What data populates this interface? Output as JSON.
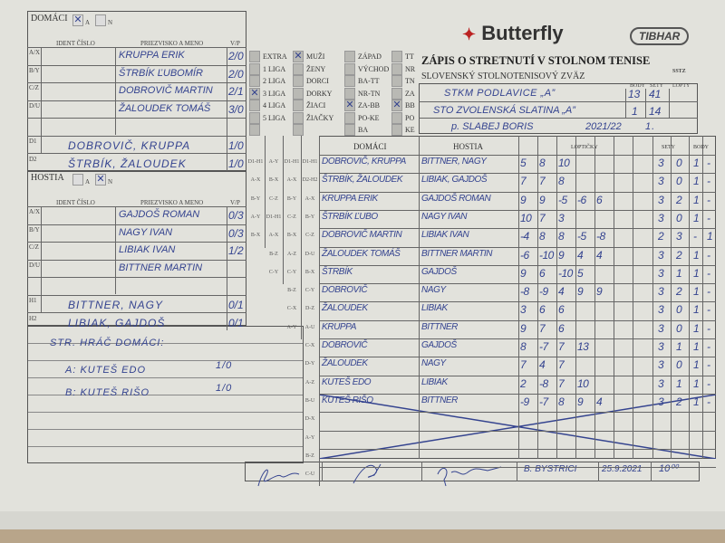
{
  "form": {
    "brand": "Butterfly",
    "brand2": "TIBHAR",
    "badge": "SSTZ",
    "title": "ZÁPIS O STRETNUTÍ V STOLNOM TENISE",
    "subtitle": "SLOVENSKÝ STOLNOTENISOVÝ ZVÄZ",
    "col_body": "BODY",
    "col_sety": "SETY",
    "col_lopty": "LOPTY"
  },
  "home_panel": {
    "label": "DOMÁCI",
    "opt_a": "A",
    "opt_n": "N",
    "selected": "A",
    "h_ident": "IDENT ČÍSLO",
    "h_name": "PRIEZVISKO A MENO",
    "h_vp": "V/P",
    "players": [
      {
        "slot": "A/X",
        "name": "KRUPPA ERIK",
        "vp": "2/0"
      },
      {
        "slot": "B/Y",
        "name": "ŠTRBÍK ĽUBOMÍR",
        "vp": "2/0"
      },
      {
        "slot": "C/Z",
        "name": "DOBROVIČ MARTIN",
        "vp": "2/1"
      },
      {
        "slot": "D/U",
        "name": "ŽALOUDEK TOMÁŠ",
        "vp": "3/0"
      }
    ],
    "doubles": [
      {
        "slot": "D1",
        "names": "DOBROVIČ, KRUPPA",
        "vp": "1/0"
      },
      {
        "slot": "D2",
        "names": "ŠTRBÍK, ŽALOUDEK",
        "vp": "1/0"
      }
    ]
  },
  "away_panel": {
    "label": "HOSTIA",
    "opt_a": "A",
    "opt_n": "N",
    "selected": "N",
    "h_ident": "IDENT ČÍSLO",
    "h_name": "PRIEZVISKO A MENO",
    "h_vp": "V/P",
    "players": [
      {
        "slot": "A/X",
        "name": "GAJDOŠ ROMAN",
        "vp": "0/3"
      },
      {
        "slot": "B/Y",
        "name": "NAGY IVAN",
        "vp": "0/3"
      },
      {
        "slot": "C/Z",
        "name": "LIBIAK IVAN",
        "vp": "1/2"
      },
      {
        "slot": "D/U",
        "name": "BITTNER MARTIN",
        "vp": ""
      }
    ],
    "doubles": [
      {
        "slot": "H1",
        "names": "BITTNER, NAGY",
        "vp": "0/1"
      },
      {
        "slot": "H2",
        "names": "LIBIAK, GAJDOŠ",
        "vp": "0/1"
      }
    ]
  },
  "notes": [
    "STR. HRÁČ DOMÁCI:",
    "A: KUTEŠ EDO",
    "B: KUTEŠ RIŠO"
  ],
  "notes_vp": [
    "1/0",
    "1/0"
  ],
  "categories": {
    "leagues": [
      {
        "l": "EXTRA",
        "c": false
      },
      {
        "l": "1 LIGA",
        "c": false
      },
      {
        "l": "2 LIGA",
        "c": false
      },
      {
        "l": "3 LIGA",
        "c": true
      },
      {
        "l": "4 LIGA",
        "c": false
      },
      {
        "l": "5 LIGA",
        "c": false
      },
      {
        "l": "",
        "c": false
      }
    ],
    "groups": [
      {
        "l": "MUŽI",
        "c": true
      },
      {
        "l": "ŽENY",
        "c": false
      },
      {
        "l": "DORCI",
        "c": false
      },
      {
        "l": "DORKY",
        "c": false
      },
      {
        "l": "ŽIACI",
        "c": false
      },
      {
        "l": "ŽIAČKY",
        "c": false
      },
      {
        "l": "",
        "c": false
      }
    ],
    "regions": [
      {
        "l": "ZÁPAD",
        "c": false
      },
      {
        "l": "VÝCHOD",
        "c": false
      },
      {
        "l": "BA-TT",
        "c": false
      },
      {
        "l": "NR-TN",
        "c": false
      },
      {
        "l": "ZA-BB",
        "c": true
      },
      {
        "l": "PO-KE",
        "c": false
      },
      {
        "l": "BA",
        "c": false
      }
    ],
    "districts": [
      {
        "l": "TT",
        "c": false
      },
      {
        "l": "NR",
        "c": false
      },
      {
        "l": "TN",
        "c": false
      },
      {
        "l": "ZA",
        "c": false
      },
      {
        "l": "BB",
        "c": true
      },
      {
        "l": "PO",
        "c": false
      },
      {
        "l": "KE",
        "c": false
      }
    ]
  },
  "teams": {
    "home": {
      "name": "STKM PODLAVICE „A”",
      "body": "13",
      "sety": "41"
    },
    "away": {
      "name": "STO ZVOLENSKÁ SLATINA „A”",
      "body": "1",
      "sety": "14"
    },
    "referee": "p. SLABEJ BORIS",
    "season": "2021/22",
    "round": "1."
  },
  "order_codes": [
    [
      "D1-H1",
      "A-X",
      "B-Y",
      "A-Y",
      "B-X"
    ],
    [
      "A-Y",
      "B-X",
      "C-Z",
      "D1-H1",
      "A-X",
      "B-Z",
      "C-Y"
    ],
    [
      "D1-H1",
      "A-X",
      "B-Y",
      "C-Z",
      "B-X",
      "A-Z",
      "C-Y",
      "B-Z",
      "C-X",
      "A-Y"
    ],
    [
      "D1-H1",
      "D2-H2",
      "A-X",
      "B-Y",
      "C-Z",
      "D-U",
      "B-X",
      "C-Y",
      "D-Z",
      "A-U",
      "C-X",
      "D-Y",
      "A-Z",
      "B-U",
      "D-X",
      "A-Y",
      "B-Z",
      "C-U"
    ]
  ],
  "matches_header": {
    "home": "DOMÁCI",
    "away": "HOSTIA",
    "balls": "LOPTIČKY",
    "sets": "SETY",
    "points": "BODY"
  },
  "matches": [
    {
      "h": "DOBROVIČ, KRUPPA",
      "a": "BITTNER, NAGY",
      "b": [
        "5",
        "8",
        "10"
      ],
      "s": [
        "3",
        "0"
      ],
      "p": [
        "1",
        "-"
      ]
    },
    {
      "h": "ŠTRBÍK, ŽALOUDEK",
      "a": "LIBIAK, GAJDOŠ",
      "b": [
        "7",
        "7",
        "8"
      ],
      "s": [
        "3",
        "0"
      ],
      "p": [
        "1",
        "-"
      ]
    },
    {
      "h": "KRUPPA ERIK",
      "a": "GAJDOŠ ROMAN",
      "b": [
        "9",
        "9",
        "-5",
        "-6",
        "6"
      ],
      "s": [
        "3",
        "2"
      ],
      "p": [
        "1",
        "-"
      ]
    },
    {
      "h": "ŠTRBÍK ĽUBO",
      "a": "NAGY IVAN",
      "b": [
        "10",
        "7",
        "3"
      ],
      "s": [
        "3",
        "0"
      ],
      "p": [
        "1",
        "-"
      ]
    },
    {
      "h": "DOBROVIČ MARTIN",
      "a": "LIBIAK IVAN",
      "b": [
        "-4",
        "8",
        "8",
        "-5",
        "-8"
      ],
      "s": [
        "2",
        "3"
      ],
      "p": [
        "-",
        "1"
      ]
    },
    {
      "h": "ŽALOUDEK TOMÁŠ",
      "a": "BITTNER MARTIN",
      "b": [
        "-6",
        "-10",
        "9",
        "4",
        "4"
      ],
      "s": [
        "3",
        "2"
      ],
      "p": [
        "1",
        "-"
      ]
    },
    {
      "h": "ŠTRBÍK",
      "a": "GAJDOŠ",
      "b": [
        "9",
        "6",
        "-10",
        "5"
      ],
      "s": [
        "3",
        "1"
      ],
      "p": [
        "1",
        "-"
      ]
    },
    {
      "h": "DOBROVIČ",
      "a": "NAGY",
      "b": [
        "-8",
        "-9",
        "4",
        "9",
        "9"
      ],
      "s": [
        "3",
        "2"
      ],
      "p": [
        "1",
        "-"
      ]
    },
    {
      "h": "ŽALOUDEK",
      "a": "LIBIAK",
      "b": [
        "3",
        "6",
        "6"
      ],
      "s": [
        "3",
        "0"
      ],
      "p": [
        "1",
        "-"
      ]
    },
    {
      "h": "KRUPPA",
      "a": "BITTNER",
      "b": [
        "9",
        "7",
        "6"
      ],
      "s": [
        "3",
        "0"
      ],
      "p": [
        "1",
        "-"
      ]
    },
    {
      "h": "DOBROVIČ",
      "a": "GAJDOŠ",
      "b": [
        "8",
        "-7",
        "7",
        "13"
      ],
      "s": [
        "3",
        "1"
      ],
      "p": [
        "1",
        "-"
      ]
    },
    {
      "h": "ŽALOUDEK",
      "a": "NAGY",
      "b": [
        "7",
        "4",
        "7"
      ],
      "s": [
        "3",
        "0"
      ],
      "p": [
        "1",
        "-"
      ]
    },
    {
      "h": "KUTEŠ EDO",
      "a": "LIBIAK",
      "b": [
        "2",
        "-8",
        "7",
        "10"
      ],
      "s": [
        "3",
        "1"
      ],
      "p": [
        "1",
        "-"
      ]
    },
    {
      "h": "KUTEŠ RIŠO",
      "a": "BITTNER",
      "b": [
        "-9",
        "-7",
        "8",
        "9",
        "4"
      ],
      "s": [
        "3",
        "2"
      ],
      "p": [
        "1",
        "-"
      ]
    }
  ],
  "footer": {
    "place": "B. BYSTRICI",
    "date": "25.9.2021",
    "time": "10⁰⁰"
  },
  "colors": {
    "ink": "#34438f",
    "paper": "#e2e2dc",
    "grid": "#666666"
  }
}
